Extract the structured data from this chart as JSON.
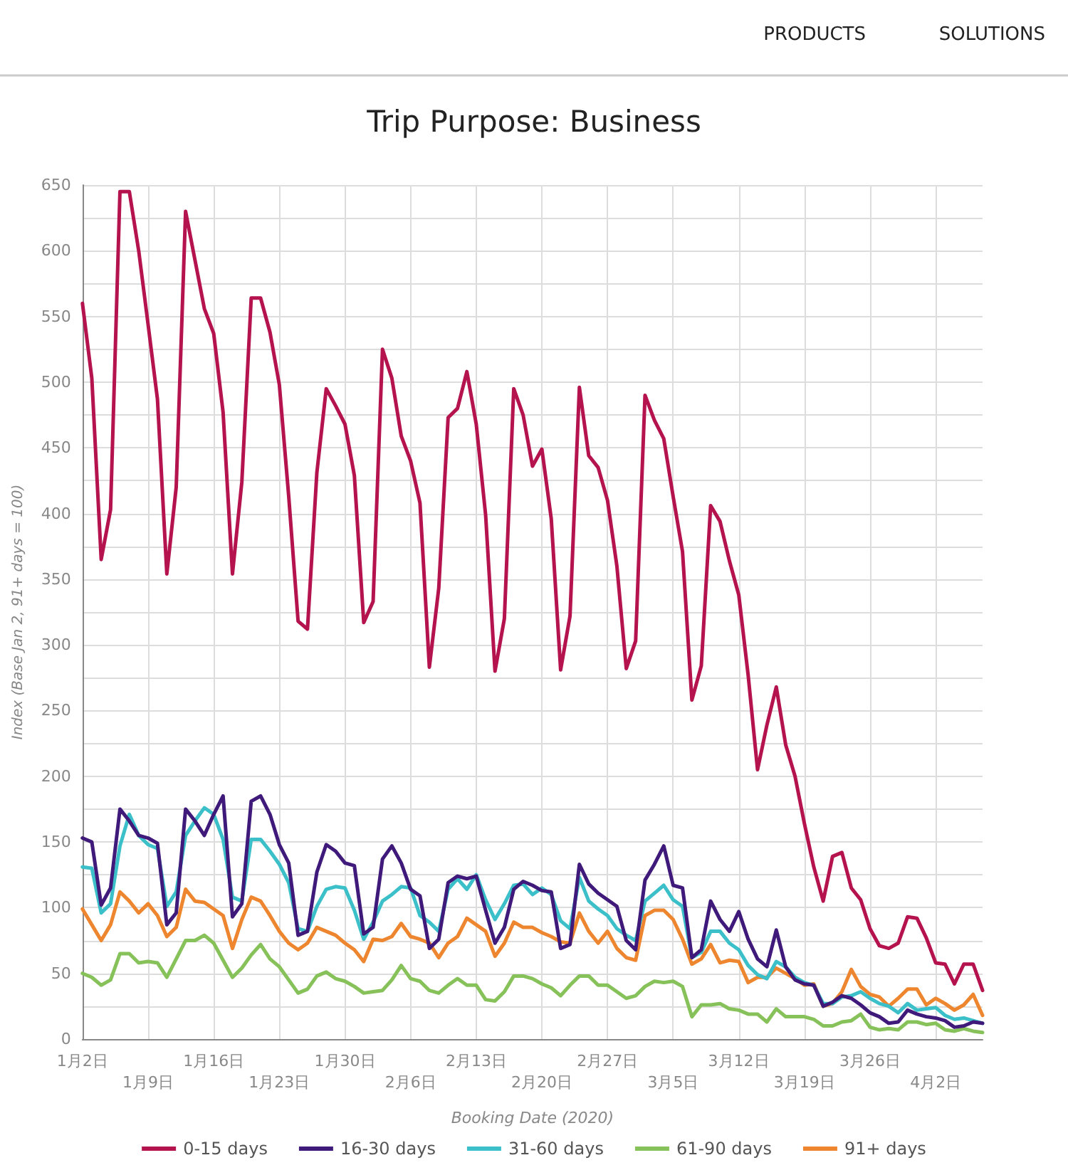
{
  "chart_data": {
    "type": "line",
    "title": "Trip Purpose: Business",
    "xlabel": "Booking Date (2020)",
    "ylabel": "Index (Base Jan 2, 91+ days = 100)",
    "annotations": [
      "PRODUCTS",
      "SOLUTIONS"
    ],
    "categories": [
      "1月2日",
      null,
      null,
      null,
      null,
      null,
      null,
      "1月9日",
      null,
      null,
      null,
      null,
      null,
      null,
      "1月16日",
      null,
      null,
      null,
      null,
      null,
      null,
      "1月23日",
      null,
      null,
      null,
      null,
      null,
      null,
      "1月30日",
      null,
      null,
      null,
      null,
      null,
      null,
      "2月6日",
      null,
      null,
      null,
      null,
      null,
      null,
      "2月13日",
      null,
      null,
      null,
      null,
      null,
      null,
      "2月20日",
      null,
      null,
      null,
      null,
      null,
      null,
      "2月27日",
      null,
      null,
      null,
      null,
      null,
      null,
      "3月5日",
      null,
      null,
      null,
      null,
      null,
      null,
      "3月12日",
      null,
      null,
      null,
      null,
      null,
      null,
      "3月19日",
      null,
      null,
      null,
      null,
      null,
      null,
      "3月26日",
      null,
      null,
      null,
      null,
      null,
      null,
      "4月2日",
      null,
      null,
      null,
      null,
      null
    ],
    "series": [
      {
        "name": "0-15 days",
        "color": "#b5134e",
        "values": [
          560,
          503,
          365,
          403,
          645,
          645,
          600,
          544,
          487,
          354,
          420,
          630,
          593,
          556,
          537,
          477,
          354,
          424,
          564,
          564,
          538,
          498,
          413,
          318,
          312,
          431,
          495,
          482,
          468,
          429,
          317,
          333,
          525,
          503,
          459,
          440,
          408,
          283,
          343,
          473,
          480,
          508,
          468,
          399,
          280,
          320,
          495,
          475,
          436,
          449,
          396,
          281,
          322,
          496,
          444,
          435,
          410,
          360,
          282,
          303,
          490,
          471,
          457,
          413,
          371,
          258,
          284,
          406,
          394,
          364,
          338,
          277,
          205,
          239,
          268,
          224,
          200,
          164,
          131,
          105,
          139,
          142,
          115,
          106,
          84,
          71,
          69,
          73,
          93,
          92,
          77,
          58,
          57,
          42,
          57,
          57,
          37
        ]
      },
      {
        "name": "16-30 days",
        "color": "#3f1a7a",
        "values": [
          153,
          150,
          102,
          115,
          175,
          166,
          155,
          153,
          149,
          87,
          96,
          175,
          166,
          155,
          171,
          185,
          93,
          103,
          181,
          185,
          171,
          148,
          134,
          79,
          82,
          127,
          148,
          143,
          134,
          132,
          80,
          85,
          137,
          147,
          134,
          114,
          109,
          69,
          76,
          119,
          124,
          122,
          124,
          98,
          73,
          85,
          114,
          120,
          117,
          113,
          112,
          69,
          72,
          133,
          118,
          111,
          106,
          101,
          75,
          68,
          121,
          133,
          147,
          117,
          115,
          62,
          68,
          105,
          91,
          82,
          97,
          76,
          61,
          55,
          83,
          55,
          45,
          42,
          41,
          25,
          28,
          33,
          31,
          26,
          20,
          17,
          12,
          13,
          22,
          19,
          17,
          16,
          14,
          9,
          10,
          13,
          12
        ]
      },
      {
        "name": "31-60 days",
        "color": "#3bbfc9",
        "values": [
          131,
          130,
          96,
          103,
          147,
          171,
          155,
          148,
          145,
          101,
          112,
          155,
          166,
          176,
          171,
          152,
          108,
          105,
          152,
          152,
          143,
          133,
          119,
          84,
          82,
          101,
          114,
          116,
          115,
          98,
          76,
          89,
          105,
          110,
          116,
          115,
          94,
          89,
          82,
          114,
          122,
          114,
          125,
          106,
          91,
          103,
          117,
          118,
          110,
          115,
          110,
          90,
          84,
          123,
          105,
          99,
          94,
          84,
          79,
          75,
          105,
          111,
          117,
          106,
          101,
          62,
          66,
          82,
          82,
          73,
          68,
          56,
          49,
          46,
          59,
          55,
          47,
          43,
          41,
          27,
          27,
          32,
          33,
          36,
          31,
          27,
          25,
          20,
          27,
          22,
          23,
          24,
          18,
          15,
          16,
          14,
          12
        ]
      },
      {
        "name": "61-90 days",
        "color": "#86c159",
        "values": [
          50,
          47,
          41,
          45,
          65,
          65,
          58,
          59,
          58,
          47,
          61,
          75,
          75,
          79,
          73,
          60,
          47,
          54,
          64,
          72,
          61,
          55,
          45,
          35,
          38,
          48,
          51,
          46,
          44,
          40,
          35,
          36,
          37,
          45,
          56,
          46,
          44,
          37,
          35,
          41,
          46,
          41,
          41,
          30,
          29,
          36,
          48,
          48,
          46,
          42,
          39,
          33,
          41,
          48,
          48,
          41,
          41,
          36,
          31,
          33,
          40,
          44,
          43,
          44,
          40,
          17,
          26,
          26,
          27,
          23,
          22,
          19,
          19,
          13,
          23,
          17,
          17,
          17,
          15,
          10,
          10,
          13,
          14,
          19,
          9,
          7,
          8,
          7,
          13,
          13,
          11,
          12,
          7,
          6,
          8,
          6,
          5
        ]
      },
      {
        "name": "91+ days",
        "color": "#ee8630",
        "values": [
          99,
          87,
          75,
          87,
          112,
          105,
          96,
          103,
          94,
          78,
          85,
          114,
          105,
          104,
          99,
          94,
          69,
          91,
          108,
          105,
          94,
          82,
          73,
          68,
          73,
          85,
          82,
          79,
          73,
          68,
          59,
          76,
          75,
          78,
          88,
          78,
          76,
          73,
          62,
          73,
          78,
          92,
          87,
          82,
          63,
          73,
          89,
          85,
          85,
          81,
          78,
          74,
          73,
          96,
          82,
          73,
          82,
          69,
          62,
          60,
          94,
          98,
          98,
          91,
          76,
          57,
          61,
          72,
          58,
          60,
          59,
          43,
          47,
          47,
          54,
          50,
          46,
          41,
          42,
          25,
          27,
          36,
          53,
          40,
          34,
          32,
          25,
          31,
          38,
          38,
          26,
          31,
          27,
          22,
          26,
          34,
          18
        ]
      }
    ],
    "ylim": [
      0,
      650
    ],
    "yticks": [
      0,
      {
        "value": 25,
        "label": null
      },
      50,
      {
        "value": 75,
        "label": null
      },
      100,
      {
        "value": 125,
        "label": null
      },
      150,
      {
        "value": 175,
        "label": null
      },
      200,
      {
        "value": 225,
        "label": null
      },
      250,
      {
        "value": 275,
        "label": null
      },
      300,
      {
        "value": 325,
        "label": null
      },
      350,
      {
        "value": 375,
        "label": null
      },
      400,
      {
        "value": 425,
        "label": null
      },
      450,
      {
        "value": 475,
        "label": null
      },
      500,
      {
        "value": 525,
        "label": null
      },
      550,
      {
        "value": 575,
        "label": null
      },
      600,
      {
        "value": 625,
        "label": null
      },
      650
    ],
    "grid": true,
    "legend": "bottom",
    "marker": "none",
    "line_style": "solid"
  }
}
